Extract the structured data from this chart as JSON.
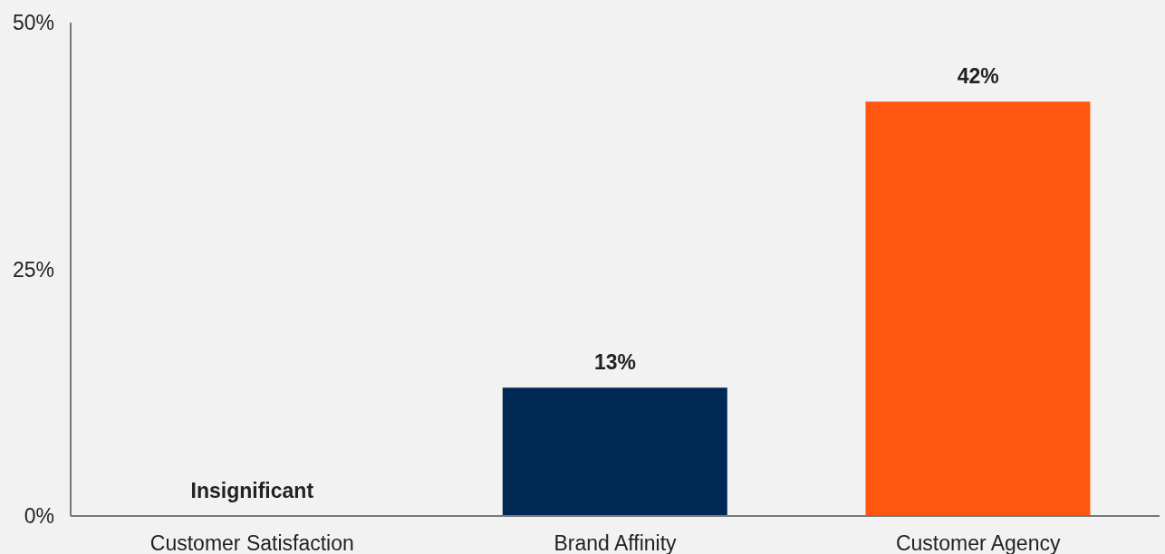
{
  "chart_data": {
    "type": "bar",
    "categories": [
      "Customer Satisfaction",
      "Brand Affinity",
      "Customer Agency"
    ],
    "values": [
      0,
      13,
      42
    ],
    "colors": [
      "#002855",
      "#002855",
      "#ff570f"
    ],
    "value_labels": [
      "Insignificant",
      "13%",
      "42%"
    ],
    "ylim": [
      0,
      50
    ],
    "yticks": [
      {
        "value": 0,
        "label": "0%"
      },
      {
        "value": 25,
        "label": "25%"
      },
      {
        "value": 50,
        "label": "50%"
      }
    ],
    "grid": false,
    "legend": false
  }
}
